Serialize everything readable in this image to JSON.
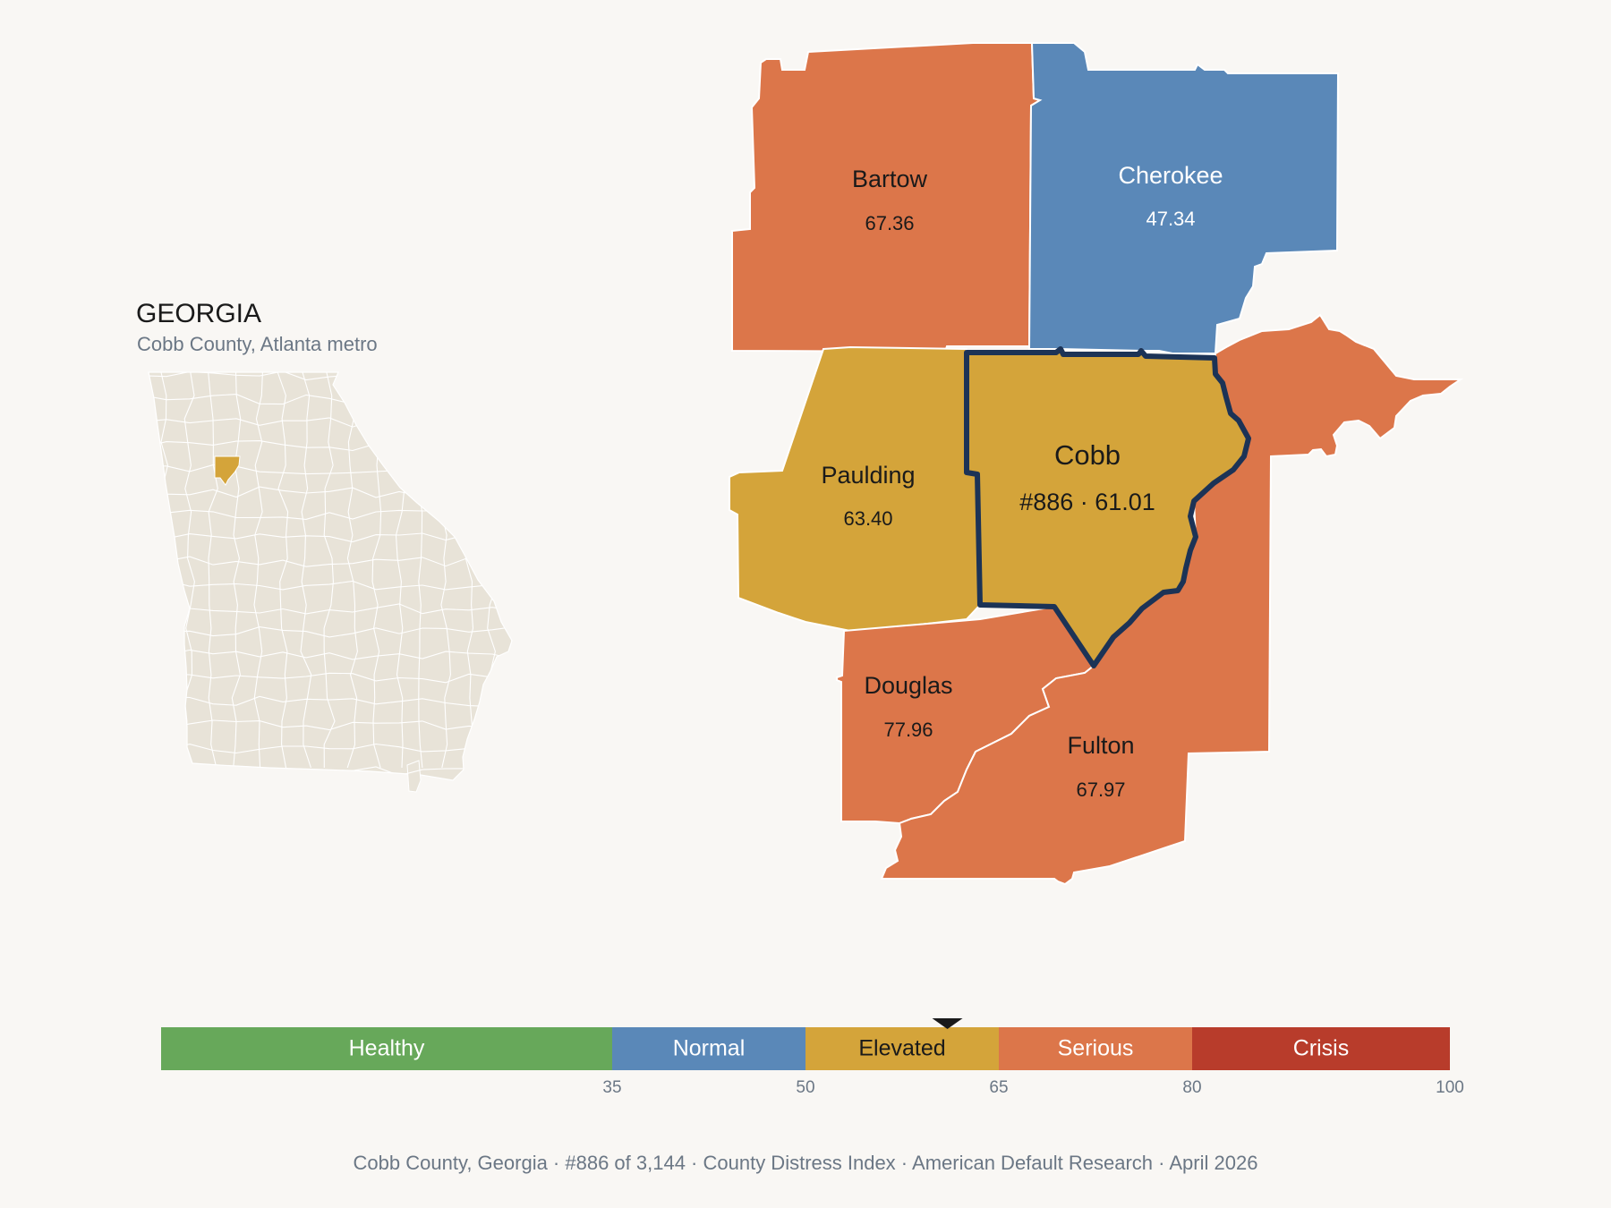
{
  "state": {
    "title": "GEORGIA",
    "subtitle": "Cobb County, Atlanta metro",
    "fill_color": "#e8e3d8",
    "highlight_color": "#d4a43a"
  },
  "colors": {
    "healthy": "#67a85a",
    "normal": "#5a88b8",
    "elevated": "#d4a43a",
    "serious": "#dc764a",
    "crisis": "#b83c2b",
    "target_outline": "#1c3356"
  },
  "counties": [
    {
      "id": "bartow",
      "name": "Bartow",
      "value": "67.36",
      "category": "serious"
    },
    {
      "id": "cherokee",
      "name": "Cherokee",
      "value": "47.34",
      "category": "normal"
    },
    {
      "id": "paulding",
      "name": "Paulding",
      "value": "63.40",
      "category": "elevated"
    },
    {
      "id": "douglas",
      "name": "Douglas",
      "value": "77.96",
      "category": "serious"
    },
    {
      "id": "fulton",
      "name": "Fulton",
      "value": "67.97",
      "category": "serious"
    },
    {
      "id": "cobb",
      "name": "Cobb",
      "value": "#886 · 61.01",
      "category": "elevated",
      "target": true
    }
  ],
  "legend": {
    "bands": [
      {
        "label": "Healthy",
        "color": "#67a85a",
        "text_color": "#ffffff"
      },
      {
        "label": "Normal",
        "color": "#5a88b8",
        "text_color": "#ffffff"
      },
      {
        "label": "Elevated",
        "color": "#d4a43a",
        "text_color": "#1a1a1a"
      },
      {
        "label": "Serious",
        "color": "#dc764a",
        "text_color": "#ffffff"
      },
      {
        "label": "Crisis",
        "color": "#b83c2b",
        "text_color": "#ffffff"
      }
    ],
    "ticks": [
      "35",
      "50",
      "65",
      "80",
      "100"
    ],
    "marker_value": 61.01
  },
  "footer": {
    "items": [
      "Cobb County, Georgia",
      "#886 of 3,144",
      "County Distress Index",
      "American Default Research",
      "April 2026"
    ],
    "separator": "·"
  }
}
